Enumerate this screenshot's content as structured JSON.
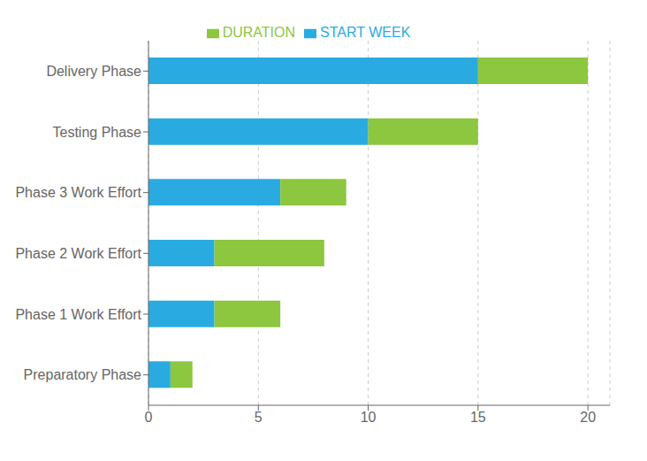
{
  "chart_data": {
    "type": "bar",
    "orientation": "horizontal",
    "stacked": true,
    "categories": [
      "Preparatory Phase",
      "Phase 1 Work Effort",
      "Phase 2 Work Effort",
      "Phase 3 Work Effort",
      "Testing Phase",
      "Delivery Phase"
    ],
    "series": [
      {
        "name": "START WEEK",
        "color": "#29ABE2",
        "values": [
          1,
          3,
          3,
          6,
          10,
          15
        ]
      },
      {
        "name": "DURATION",
        "color": "#8DC63F",
        "values": [
          1,
          3,
          5,
          3,
          5,
          5
        ]
      }
    ],
    "xlim": [
      0,
      21
    ],
    "xticks": [
      0,
      5,
      10,
      15,
      20
    ],
    "grid": true,
    "legend": "top"
  }
}
